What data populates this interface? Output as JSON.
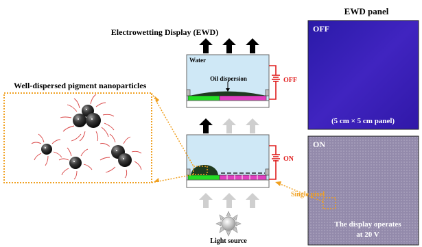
{
  "texts": {
    "ewd_title": "Electrowetting Display (EWD)",
    "panel_title": "EWD panel",
    "pigment_title": "Well-dispersed pigment nanoparticles",
    "water": "Water",
    "oil": "Oil dispersion",
    "off_switch": "OFF",
    "on_switch": "ON",
    "light_source": "Light source",
    "single_pixel": "Single pixel",
    "panel_off": "OFF",
    "panel_on": "ON",
    "panel_size": "(5 cm × 5 cm panel)",
    "operates_line1": "The display operates",
    "operates_line2": "at 20 V"
  },
  "colors": {
    "water": "#cfe8f6",
    "green_electrode": "#22dd22",
    "magenta_electrode": "#e040c0",
    "circuit": "#e02020",
    "dotted": "#f0a020",
    "panel_off": "#3a1fb0",
    "panel_on": "#8f86a8"
  }
}
